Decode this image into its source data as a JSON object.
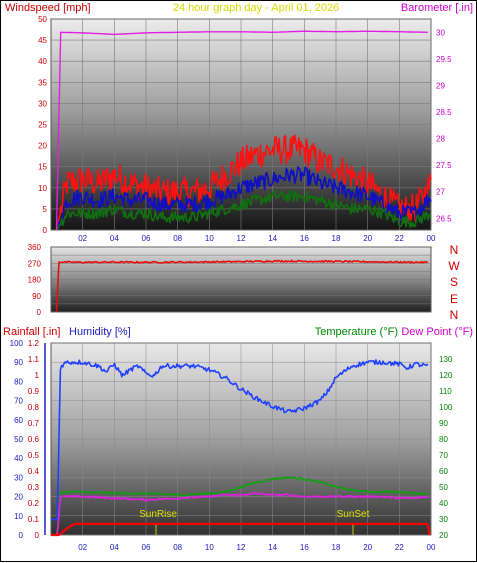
{
  "header": {
    "wind_label": "Windspeed [mph]",
    "title": "24 hour graph day - April 01, 2026",
    "baro_label": "Barometer [.in]"
  },
  "direction_labels": [
    "N",
    "W",
    "S",
    "E",
    "N"
  ],
  "bottom_labels": {
    "rain": "Rainfall [.in]",
    "humidity": "Humidity [%]",
    "temperature": "Temperature (°F)",
    "dewpoint": "Dew Point (°F)",
    "sunrise": "SunRise",
    "sunset": "SunSet"
  },
  "colors": {
    "wind_gust": "#ff1010",
    "wind_avg": "#1010c0",
    "wind_low": "#107010",
    "barometer": "#e020e0",
    "direction": "#e01010",
    "humidity": "#2040ff",
    "temperature": "#10a010",
    "dewpoint": "#e020e0",
    "rain": "#ff0000",
    "left_axis_red": "#cc0000",
    "left_axis_blue": "#2020c0",
    "right_axis_magenta": "#cc00cc",
    "right_axis_green": "#008800"
  },
  "chart_data": [
    {
      "type": "line",
      "xlabel": "",
      "x_ticks": [
        "02",
        "04",
        "06",
        "08",
        "10",
        "12",
        "14",
        "16",
        "18",
        "20",
        "22",
        "00"
      ],
      "left_axis": {
        "label": "Windspeed [mph]",
        "ylim": [
          0,
          50
        ],
        "ticks": [
          "0",
          "5",
          "10",
          "15",
          "20",
          "25",
          "30",
          "35",
          "40",
          "45",
          "50"
        ]
      },
      "right_axis": {
        "label": "Barometer [.in]",
        "ylim": [
          26.28,
          30.25
        ],
        "ticks": [
          "26.5",
          "27",
          "27.5",
          "28",
          "28.5",
          "29",
          "29.5",
          "30"
        ]
      },
      "series": [
        {
          "axis": "right",
          "x": [
            0.35,
            0.5,
            2,
            4,
            6,
            8,
            10,
            12,
            14,
            16,
            18,
            20,
            22,
            23.8
          ],
          "values": [
            26.28,
            30.0,
            29.99,
            29.96,
            29.99,
            30.0,
            30.01,
            30.01,
            30.0,
            30.02,
            30.01,
            30.02,
            30.01,
            30.0
          ]
        },
        {
          "axis": "left",
          "x": [
            0.35,
            1,
            2,
            3,
            4,
            5,
            6,
            7,
            8,
            9,
            10,
            11,
            12,
            13,
            14,
            15,
            16,
            17,
            18,
            19,
            20,
            21,
            22,
            23,
            24
          ],
          "values": [
            0,
            11,
            12,
            11,
            13,
            11,
            10,
            9,
            9,
            9,
            10,
            13,
            16,
            18,
            19,
            19,
            19,
            16,
            15,
            13,
            11,
            8,
            5,
            5,
            11
          ]
        },
        {
          "axis": "left",
          "x": [
            0.35,
            1,
            2,
            3,
            4,
            5,
            6,
            7,
            8,
            9,
            10,
            11,
            12,
            13,
            14,
            15,
            16,
            17,
            18,
            19,
            20,
            21,
            22,
            23,
            24
          ],
          "values": [
            0,
            7,
            8,
            7,
            8,
            7,
            7,
            6,
            6,
            6,
            7,
            8,
            10,
            11,
            12,
            13,
            13,
            11,
            10,
            9,
            8,
            6,
            4,
            4,
            8
          ]
        },
        {
          "axis": "left",
          "x": [
            0.35,
            1,
            2,
            3,
            4,
            5,
            6,
            7,
            8,
            9,
            10,
            11,
            12,
            13,
            14,
            15,
            16,
            17,
            18,
            19,
            20,
            21,
            22,
            23,
            24
          ],
          "values": [
            0,
            4,
            4,
            4,
            5,
            4,
            4,
            3,
            3,
            3,
            4,
            5,
            6,
            7,
            8,
            8,
            8,
            7,
            6,
            5,
            5,
            4,
            2,
            2,
            4
          ]
        }
      ]
    },
    {
      "type": "line",
      "left_axis": {
        "ylim": [
          0,
          360
        ],
        "ticks": [
          "0",
          "90",
          "180",
          "270",
          "360"
        ]
      },
      "series": [
        {
          "x": [
            0.35,
            0.5,
            2,
            4,
            6,
            8,
            10,
            12,
            14,
            16,
            18,
            20,
            22,
            23.8
          ],
          "values": [
            0,
            276,
            275,
            276,
            275,
            276,
            277,
            279,
            282,
            281,
            280,
            278,
            276,
            275
          ]
        }
      ]
    },
    {
      "type": "line",
      "x_ticks": [
        "02",
        "04",
        "06",
        "08",
        "10",
        "12",
        "14",
        "16",
        "18",
        "20",
        "22",
        "00"
      ],
      "left_axis_rain": {
        "label": "Rainfall [.in]",
        "ylim": [
          0,
          1.2
        ],
        "ticks": [
          "0",
          "0.1",
          "0.2",
          "0.3",
          "0.4",
          "0.5",
          "0.6",
          "0.7",
          "0.8",
          "0.9",
          "1",
          "1.1",
          "1.2"
        ]
      },
      "left_axis_humidity": {
        "label": "Humidity [%]",
        "ylim": [
          0,
          100
        ],
        "ticks": [
          "0",
          "10",
          "20",
          "30",
          "40",
          "50",
          "60",
          "70",
          "80",
          "90",
          "100"
        ]
      },
      "right_axis": {
        "label": "Temperature (°F)",
        "ylim": [
          20,
          140
        ],
        "ticks": [
          "20",
          "30",
          "40",
          "50",
          "60",
          "70",
          "80",
          "90",
          "100",
          "110",
          "120",
          "130"
        ]
      },
      "series": [
        {
          "axis": "humidity",
          "x": [
            0,
            0.4,
            0.6,
            1,
            2,
            3,
            3.5,
            4,
            4.5,
            5,
            5.5,
            6,
            6.5,
            7,
            8,
            9,
            10,
            11,
            12,
            13,
            14,
            15,
            16,
            17,
            17.5,
            18,
            19,
            20,
            21,
            22,
            22.5,
            23,
            23.8
          ],
          "values": [
            8,
            8,
            88,
            90,
            90,
            88,
            85,
            89,
            83,
            86,
            88,
            84,
            83,
            88,
            88,
            88,
            86,
            82,
            76,
            71,
            67,
            64,
            66,
            70,
            75,
            82,
            88,
            90,
            90,
            89,
            87,
            89,
            88
          ]
        },
        {
          "axis": "right",
          "x": [
            0,
            0.4,
            0.6,
            1,
            2,
            4,
            6,
            8,
            10,
            11,
            12,
            13,
            14,
            15,
            16,
            17,
            18,
            19,
            20,
            21,
            22,
            23,
            23.8
          ],
          "values": [
            20,
            20,
            47,
            47,
            47,
            46,
            46,
            45,
            46,
            47,
            50,
            53,
            55,
            56,
            55,
            53,
            50,
            48,
            47,
            47,
            47,
            46,
            46
          ]
        },
        {
          "axis": "right",
          "x": [
            0,
            0.4,
            0.6,
            1,
            2,
            4,
            6,
            8,
            10,
            11,
            12,
            13,
            14,
            15,
            16,
            17,
            18,
            19,
            20,
            21,
            22,
            23,
            23.8
          ],
          "values": [
            20,
            20,
            44,
            44,
            44,
            43,
            42,
            43,
            44,
            45,
            45,
            46,
            45,
            45,
            44,
            44,
            44,
            44,
            44,
            44,
            43,
            43,
            44
          ]
        },
        {
          "axis": "rain",
          "x": [
            0,
            0.5,
            1,
            1.5,
            23.8,
            23.9
          ],
          "values": [
            0,
            0,
            0.04,
            0.07,
            0.07,
            0
          ]
        }
      ]
    }
  ]
}
